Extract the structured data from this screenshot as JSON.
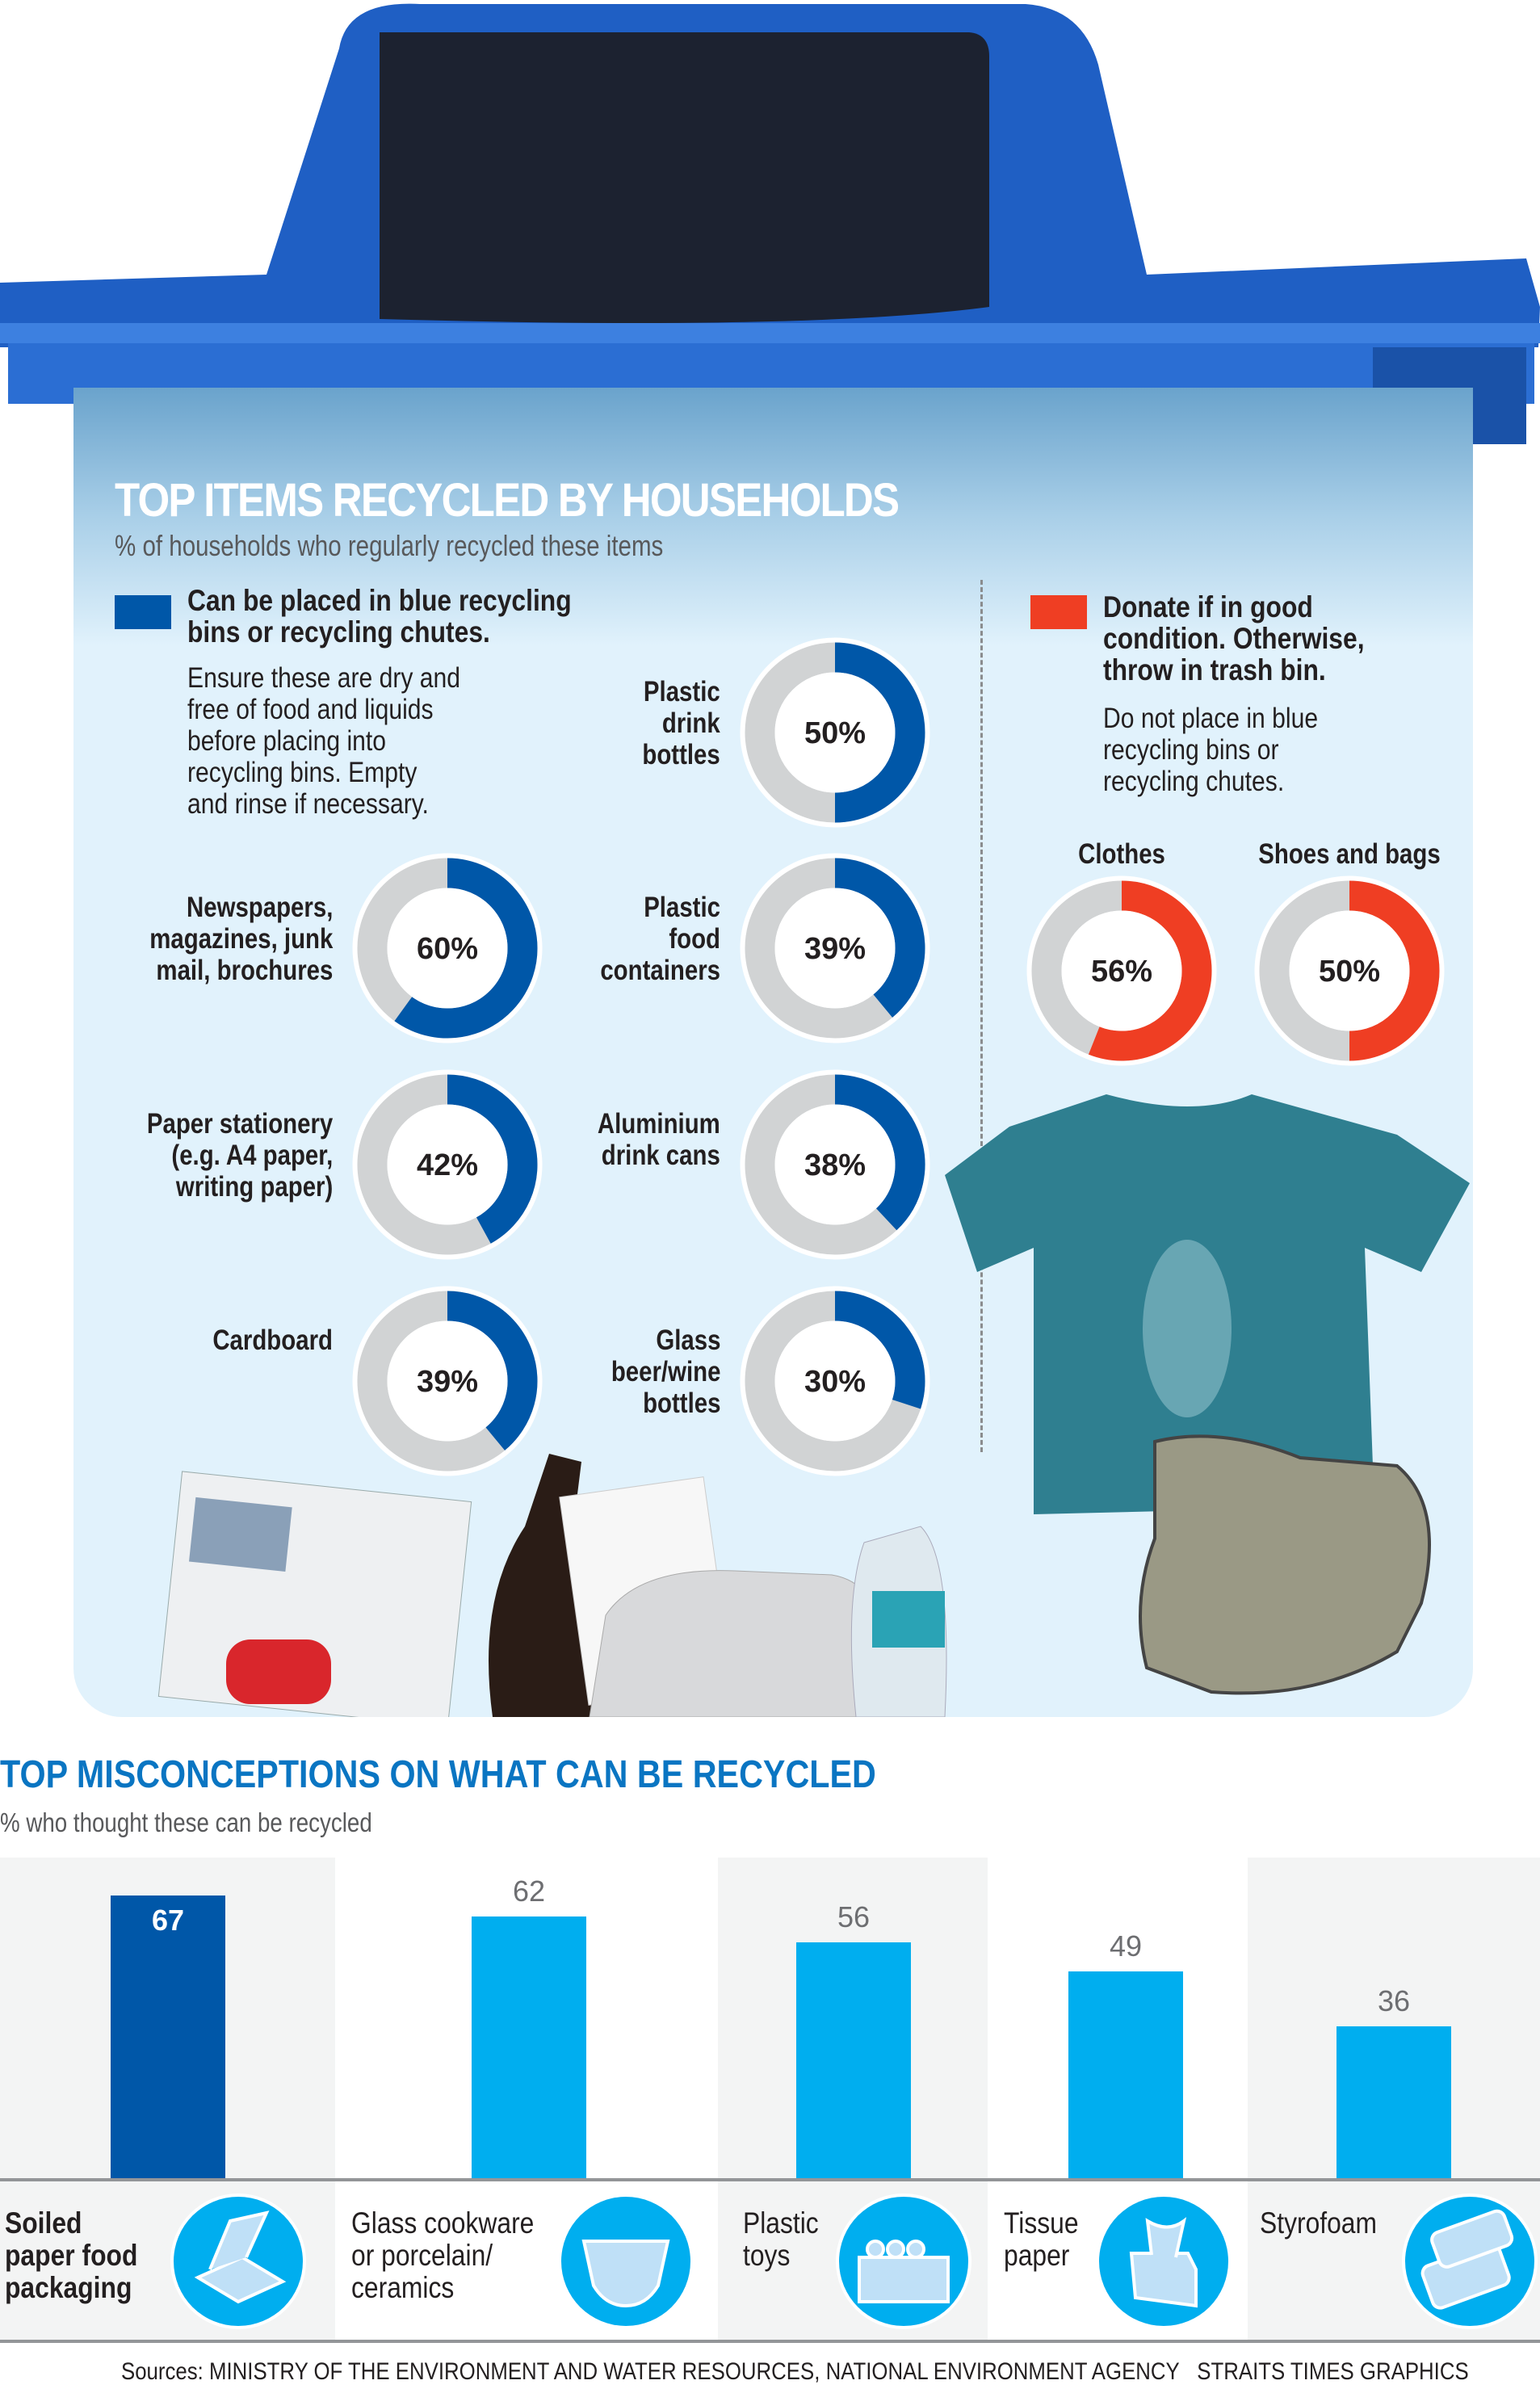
{
  "section1": {
    "title": "TOP ITEMS RECYCLED BY HOUSEHOLDS",
    "subtitle": "% of households who regularly recycled these items",
    "legend_blue": {
      "heading": [
        "Can be placed in blue recycling",
        "bins or recycling chutes."
      ],
      "body": [
        "Ensure these are dry and",
        "free of food and liquids",
        "before placing into",
        "recycling bins. Empty",
        "and rinse if necessary."
      ],
      "color": "#0057a8"
    },
    "legend_red": {
      "heading": [
        "Donate if in good",
        "condition. Otherwise,",
        "throw in trash bin."
      ],
      "body": [
        "Do not place in blue",
        "recycling bins or",
        "recycling chutes."
      ],
      "color": "#ef3e23"
    },
    "remainder_color": "#d1d3d4"
  },
  "chart_data": [
    {
      "type": "donut",
      "title": "TOP ITEMS RECYCLED BY HOUSEHOLDS",
      "subtitle": "% of households who regularly recycled these items",
      "items": [
        {
          "label": [
            "Plastic",
            "drink",
            "bottles"
          ],
          "value": 50,
          "group": "blue"
        },
        {
          "label": [
            "Newspapers,",
            "magazines, junk",
            "mail, brochures"
          ],
          "value": 60,
          "group": "blue"
        },
        {
          "label": [
            "Plastic",
            "food",
            "containers"
          ],
          "value": 39,
          "group": "blue"
        },
        {
          "label": [
            "Paper stationery",
            "(e.g. A4 paper,",
            "writing paper)"
          ],
          "value": 42,
          "group": "blue"
        },
        {
          "label": [
            "Aluminium",
            "drink cans"
          ],
          "value": 38,
          "group": "blue"
        },
        {
          "label": [
            "Cardboard"
          ],
          "value": 39,
          "group": "blue"
        },
        {
          "label": [
            "Glass",
            "beer/wine",
            "bottles"
          ],
          "value": 30,
          "group": "blue"
        },
        {
          "label": [
            "Clothes"
          ],
          "value": 56,
          "group": "red"
        },
        {
          "label": [
            "Shoes and bags"
          ],
          "value": 50,
          "group": "red"
        }
      ]
    },
    {
      "type": "bar",
      "title": "TOP MISCONCEPTIONS ON WHAT CAN BE RECYCLED",
      "subtitle": "% who thought these can be recycled",
      "categories": [
        [
          "Soiled",
          "paper food",
          "packaging"
        ],
        [
          "Glass cookware",
          "or porcelain/",
          "ceramics"
        ],
        [
          "Plastic",
          "toys"
        ],
        [
          "Tissue",
          "paper"
        ],
        [
          "Styrofoam"
        ]
      ],
      "values": [
        67,
        62,
        56,
        49,
        36
      ],
      "value_labels": [
        "67",
        "62",
        "56",
        "49",
        "36"
      ],
      "highlight_index": 0,
      "colors": {
        "highlight": "#0057a8",
        "bar": "#00aeef",
        "axis": "#939598"
      },
      "icons": [
        "food-box-icon",
        "bowl-icon",
        "toy-brick-icon",
        "tissue-box-icon",
        "styrofoam-box-icon"
      ],
      "ylim": [
        0,
        100
      ],
      "grid": false
    }
  ],
  "footer": {
    "sources": "Sources: MINISTRY OF THE ENVIRONMENT AND WATER RESOURCES, NATIONAL ENVIRONMENT AGENCY",
    "credit": "STRAITS TIMES GRAPHICS"
  }
}
